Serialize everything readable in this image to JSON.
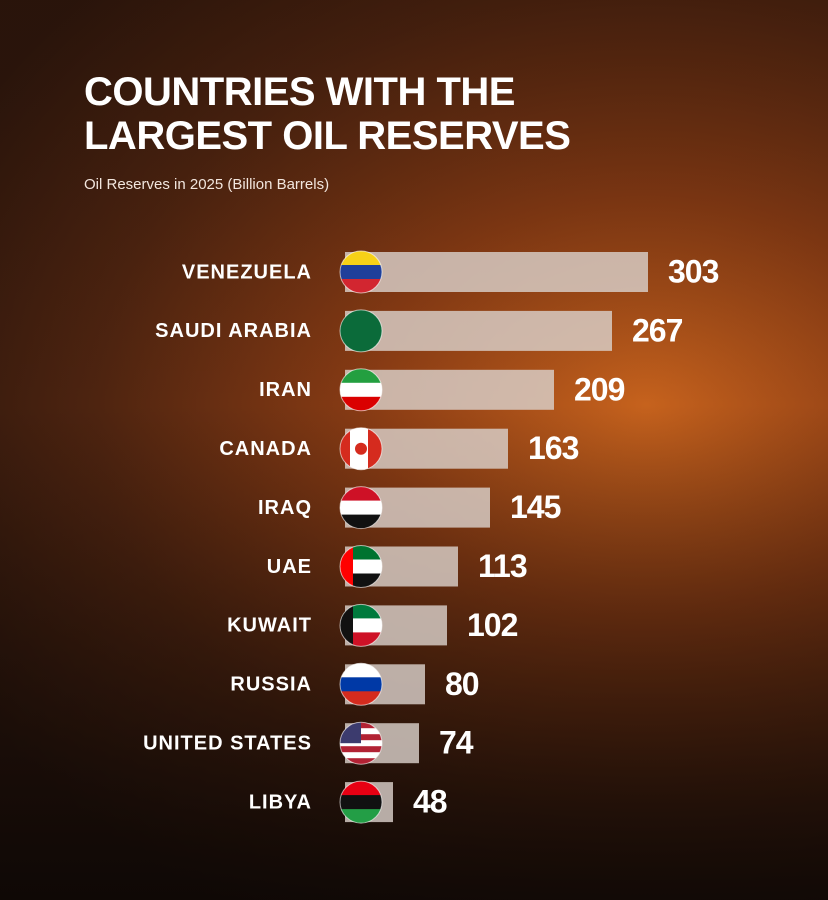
{
  "chart_data": {
    "type": "bar",
    "orientation": "horizontal",
    "title": "COUNTRIES WITH THE LARGEST OIL RESERVES",
    "subtitle": "Oil Reserves in 2025 (Billion Barrels)",
    "categories": [
      "VENEZUELA",
      "SAUDI ARABIA",
      "IRAN",
      "CANADA",
      "IRAQ",
      "UAE",
      "KUWAIT",
      "RUSSIA",
      "UNITED STATES",
      "LIBYA"
    ],
    "values": [
      303,
      267,
      209,
      163,
      145,
      113,
      102,
      80,
      74,
      48
    ],
    "color": "#d9cfc9"
  }
}
